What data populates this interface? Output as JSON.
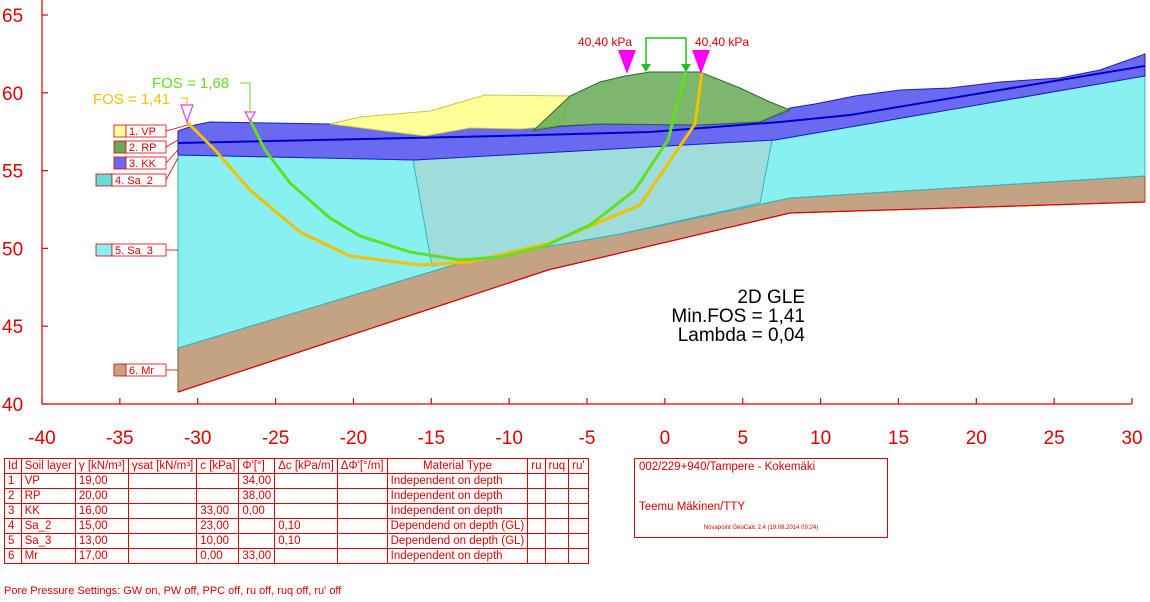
{
  "axes": {
    "x_ticks": [
      "-40",
      "-35",
      "-30",
      "-25",
      "-20",
      "-15",
      "-10",
      "-5",
      "0",
      "5",
      "10",
      "15",
      "20",
      "25",
      "30"
    ],
    "y_ticks": [
      "65",
      "60",
      "55",
      "50",
      "45",
      "40"
    ]
  },
  "loads": {
    "left": "40,40 kPa",
    "right": "40,40 kPa",
    "color": "#ff00ff"
  },
  "fos_labels": {
    "green": "FOS = 1,68",
    "yellow": "FOS = 1,41"
  },
  "analysis": {
    "method": "2D GLE",
    "min_fos": "Min.FOS = 1,41",
    "lambda": "Lambda = 0,04"
  },
  "legend": [
    {
      "label": "1. VP",
      "color": "#ffff99"
    },
    {
      "label": "2. RP",
      "color": "#66aa55"
    },
    {
      "label": "3. KK",
      "color": "#6a6af0"
    },
    {
      "label": "4. Sa_2",
      "color": "#66dddd"
    },
    {
      "label": "5. Sa_3",
      "color": "#88f0f0"
    },
    {
      "label": "6. Mr",
      "color": "#c4a384"
    }
  ],
  "table": {
    "headers": [
      "Id",
      "Soil layer",
      "γ [kN/m³]",
      "γsat [kN/m³]",
      "c [kPa]",
      "Φ'[°]",
      "Δc [kPa/m]",
      "ΔΦ'[°/m]",
      "Material Type",
      "ru",
      "ruq",
      "ru'"
    ],
    "rows": [
      [
        "1",
        "VP",
        "19,00",
        "",
        "",
        "34,00",
        "",
        "",
        "Independent on depth",
        "",
        "",
        ""
      ],
      [
        "2",
        "RP",
        "20,00",
        "",
        "",
        "38,00",
        "",
        "",
        "Independent on depth",
        "",
        "",
        ""
      ],
      [
        "3",
        "KK",
        "16,00",
        "",
        "33,00",
        "0,00",
        "",
        "",
        "Independent on depth",
        "",
        "",
        ""
      ],
      [
        "4",
        "Sa_2",
        "15,00",
        "",
        "23,00",
        "",
        "0,10",
        "",
        "Dependend on depth (GL)",
        "",
        "",
        ""
      ],
      [
        "5",
        "Sa_3",
        "13,00",
        "",
        "10,00",
        "",
        "0,10",
        "",
        "Dependend on depth (GL)",
        "",
        "",
        ""
      ],
      [
        "6",
        "Mr",
        "17,00",
        "",
        "0,00",
        "33,00",
        "",
        "",
        "Independent on depth",
        "",
        "",
        ""
      ]
    ]
  },
  "titlebox": {
    "project": "002/229+940/Tampere - Kokemäki",
    "author": "Teemu Mäkinen/TTY",
    "software": "Novapoint GeoCalc 2.4 (19.08.2014 09:24)"
  },
  "pore_pressure": "Pore Pressure Settings: GW on, PW off, PPC off, ru off, ruq off, ru' off"
}
